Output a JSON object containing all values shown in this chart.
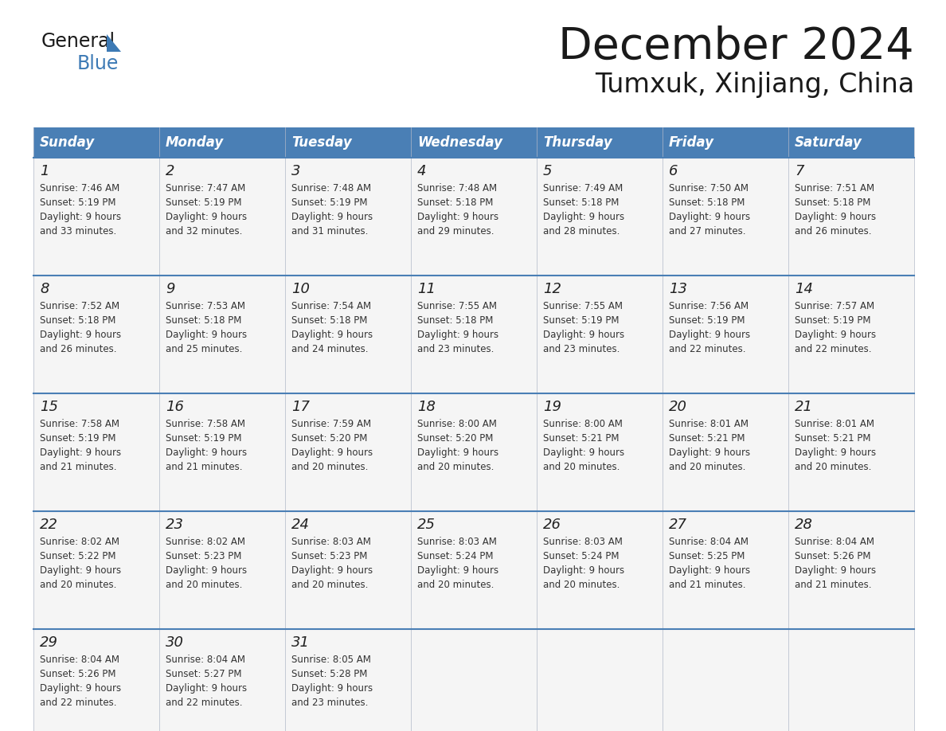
{
  "title": "December 2024",
  "subtitle": "Tumxuk, Xinjiang, China",
  "header_bg": "#4a7fb5",
  "header_text_color": "#ffffff",
  "border_color": "#4a7fb5",
  "cell_bg": "#f5f5f5",
  "day_names": [
    "Sunday",
    "Monday",
    "Tuesday",
    "Wednesday",
    "Thursday",
    "Friday",
    "Saturday"
  ],
  "days": [
    {
      "day": 1,
      "col": 0,
      "row": 0,
      "sunrise": "7:46 AM",
      "sunset": "5:19 PM",
      "daylight_hrs": 9,
      "daylight_min": 33
    },
    {
      "day": 2,
      "col": 1,
      "row": 0,
      "sunrise": "7:47 AM",
      "sunset": "5:19 PM",
      "daylight_hrs": 9,
      "daylight_min": 32
    },
    {
      "day": 3,
      "col": 2,
      "row": 0,
      "sunrise": "7:48 AM",
      "sunset": "5:19 PM",
      "daylight_hrs": 9,
      "daylight_min": 31
    },
    {
      "day": 4,
      "col": 3,
      "row": 0,
      "sunrise": "7:48 AM",
      "sunset": "5:18 PM",
      "daylight_hrs": 9,
      "daylight_min": 29
    },
    {
      "day": 5,
      "col": 4,
      "row": 0,
      "sunrise": "7:49 AM",
      "sunset": "5:18 PM",
      "daylight_hrs": 9,
      "daylight_min": 28
    },
    {
      "day": 6,
      "col": 5,
      "row": 0,
      "sunrise": "7:50 AM",
      "sunset": "5:18 PM",
      "daylight_hrs": 9,
      "daylight_min": 27
    },
    {
      "day": 7,
      "col": 6,
      "row": 0,
      "sunrise": "7:51 AM",
      "sunset": "5:18 PM",
      "daylight_hrs": 9,
      "daylight_min": 26
    },
    {
      "day": 8,
      "col": 0,
      "row": 1,
      "sunrise": "7:52 AM",
      "sunset": "5:18 PM",
      "daylight_hrs": 9,
      "daylight_min": 26
    },
    {
      "day": 9,
      "col": 1,
      "row": 1,
      "sunrise": "7:53 AM",
      "sunset": "5:18 PM",
      "daylight_hrs": 9,
      "daylight_min": 25
    },
    {
      "day": 10,
      "col": 2,
      "row": 1,
      "sunrise": "7:54 AM",
      "sunset": "5:18 PM",
      "daylight_hrs": 9,
      "daylight_min": 24
    },
    {
      "day": 11,
      "col": 3,
      "row": 1,
      "sunrise": "7:55 AM",
      "sunset": "5:18 PM",
      "daylight_hrs": 9,
      "daylight_min": 23
    },
    {
      "day": 12,
      "col": 4,
      "row": 1,
      "sunrise": "7:55 AM",
      "sunset": "5:19 PM",
      "daylight_hrs": 9,
      "daylight_min": 23
    },
    {
      "day": 13,
      "col": 5,
      "row": 1,
      "sunrise": "7:56 AM",
      "sunset": "5:19 PM",
      "daylight_hrs": 9,
      "daylight_min": 22
    },
    {
      "day": 14,
      "col": 6,
      "row": 1,
      "sunrise": "7:57 AM",
      "sunset": "5:19 PM",
      "daylight_hrs": 9,
      "daylight_min": 22
    },
    {
      "day": 15,
      "col": 0,
      "row": 2,
      "sunrise": "7:58 AM",
      "sunset": "5:19 PM",
      "daylight_hrs": 9,
      "daylight_min": 21
    },
    {
      "day": 16,
      "col": 1,
      "row": 2,
      "sunrise": "7:58 AM",
      "sunset": "5:19 PM",
      "daylight_hrs": 9,
      "daylight_min": 21
    },
    {
      "day": 17,
      "col": 2,
      "row": 2,
      "sunrise": "7:59 AM",
      "sunset": "5:20 PM",
      "daylight_hrs": 9,
      "daylight_min": 20
    },
    {
      "day": 18,
      "col": 3,
      "row": 2,
      "sunrise": "8:00 AM",
      "sunset": "5:20 PM",
      "daylight_hrs": 9,
      "daylight_min": 20
    },
    {
      "day": 19,
      "col": 4,
      "row": 2,
      "sunrise": "8:00 AM",
      "sunset": "5:21 PM",
      "daylight_hrs": 9,
      "daylight_min": 20
    },
    {
      "day": 20,
      "col": 5,
      "row": 2,
      "sunrise": "8:01 AM",
      "sunset": "5:21 PM",
      "daylight_hrs": 9,
      "daylight_min": 20
    },
    {
      "day": 21,
      "col": 6,
      "row": 2,
      "sunrise": "8:01 AM",
      "sunset": "5:21 PM",
      "daylight_hrs": 9,
      "daylight_min": 20
    },
    {
      "day": 22,
      "col": 0,
      "row": 3,
      "sunrise": "8:02 AM",
      "sunset": "5:22 PM",
      "daylight_hrs": 9,
      "daylight_min": 20
    },
    {
      "day": 23,
      "col": 1,
      "row": 3,
      "sunrise": "8:02 AM",
      "sunset": "5:23 PM",
      "daylight_hrs": 9,
      "daylight_min": 20
    },
    {
      "day": 24,
      "col": 2,
      "row": 3,
      "sunrise": "8:03 AM",
      "sunset": "5:23 PM",
      "daylight_hrs": 9,
      "daylight_min": 20
    },
    {
      "day": 25,
      "col": 3,
      "row": 3,
      "sunrise": "8:03 AM",
      "sunset": "5:24 PM",
      "daylight_hrs": 9,
      "daylight_min": 20
    },
    {
      "day": 26,
      "col": 4,
      "row": 3,
      "sunrise": "8:03 AM",
      "sunset": "5:24 PM",
      "daylight_hrs": 9,
      "daylight_min": 20
    },
    {
      "day": 27,
      "col": 5,
      "row": 3,
      "sunrise": "8:04 AM",
      "sunset": "5:25 PM",
      "daylight_hrs": 9,
      "daylight_min": 21
    },
    {
      "day": 28,
      "col": 6,
      "row": 3,
      "sunrise": "8:04 AM",
      "sunset": "5:26 PM",
      "daylight_hrs": 9,
      "daylight_min": 21
    },
    {
      "day": 29,
      "col": 0,
      "row": 4,
      "sunrise": "8:04 AM",
      "sunset": "5:26 PM",
      "daylight_hrs": 9,
      "daylight_min": 22
    },
    {
      "day": 30,
      "col": 1,
      "row": 4,
      "sunrise": "8:04 AM",
      "sunset": "5:27 PM",
      "daylight_hrs": 9,
      "daylight_min": 22
    },
    {
      "day": 31,
      "col": 2,
      "row": 4,
      "sunrise": "8:05 AM",
      "sunset": "5:28 PM",
      "daylight_hrs": 9,
      "daylight_min": 23
    }
  ]
}
